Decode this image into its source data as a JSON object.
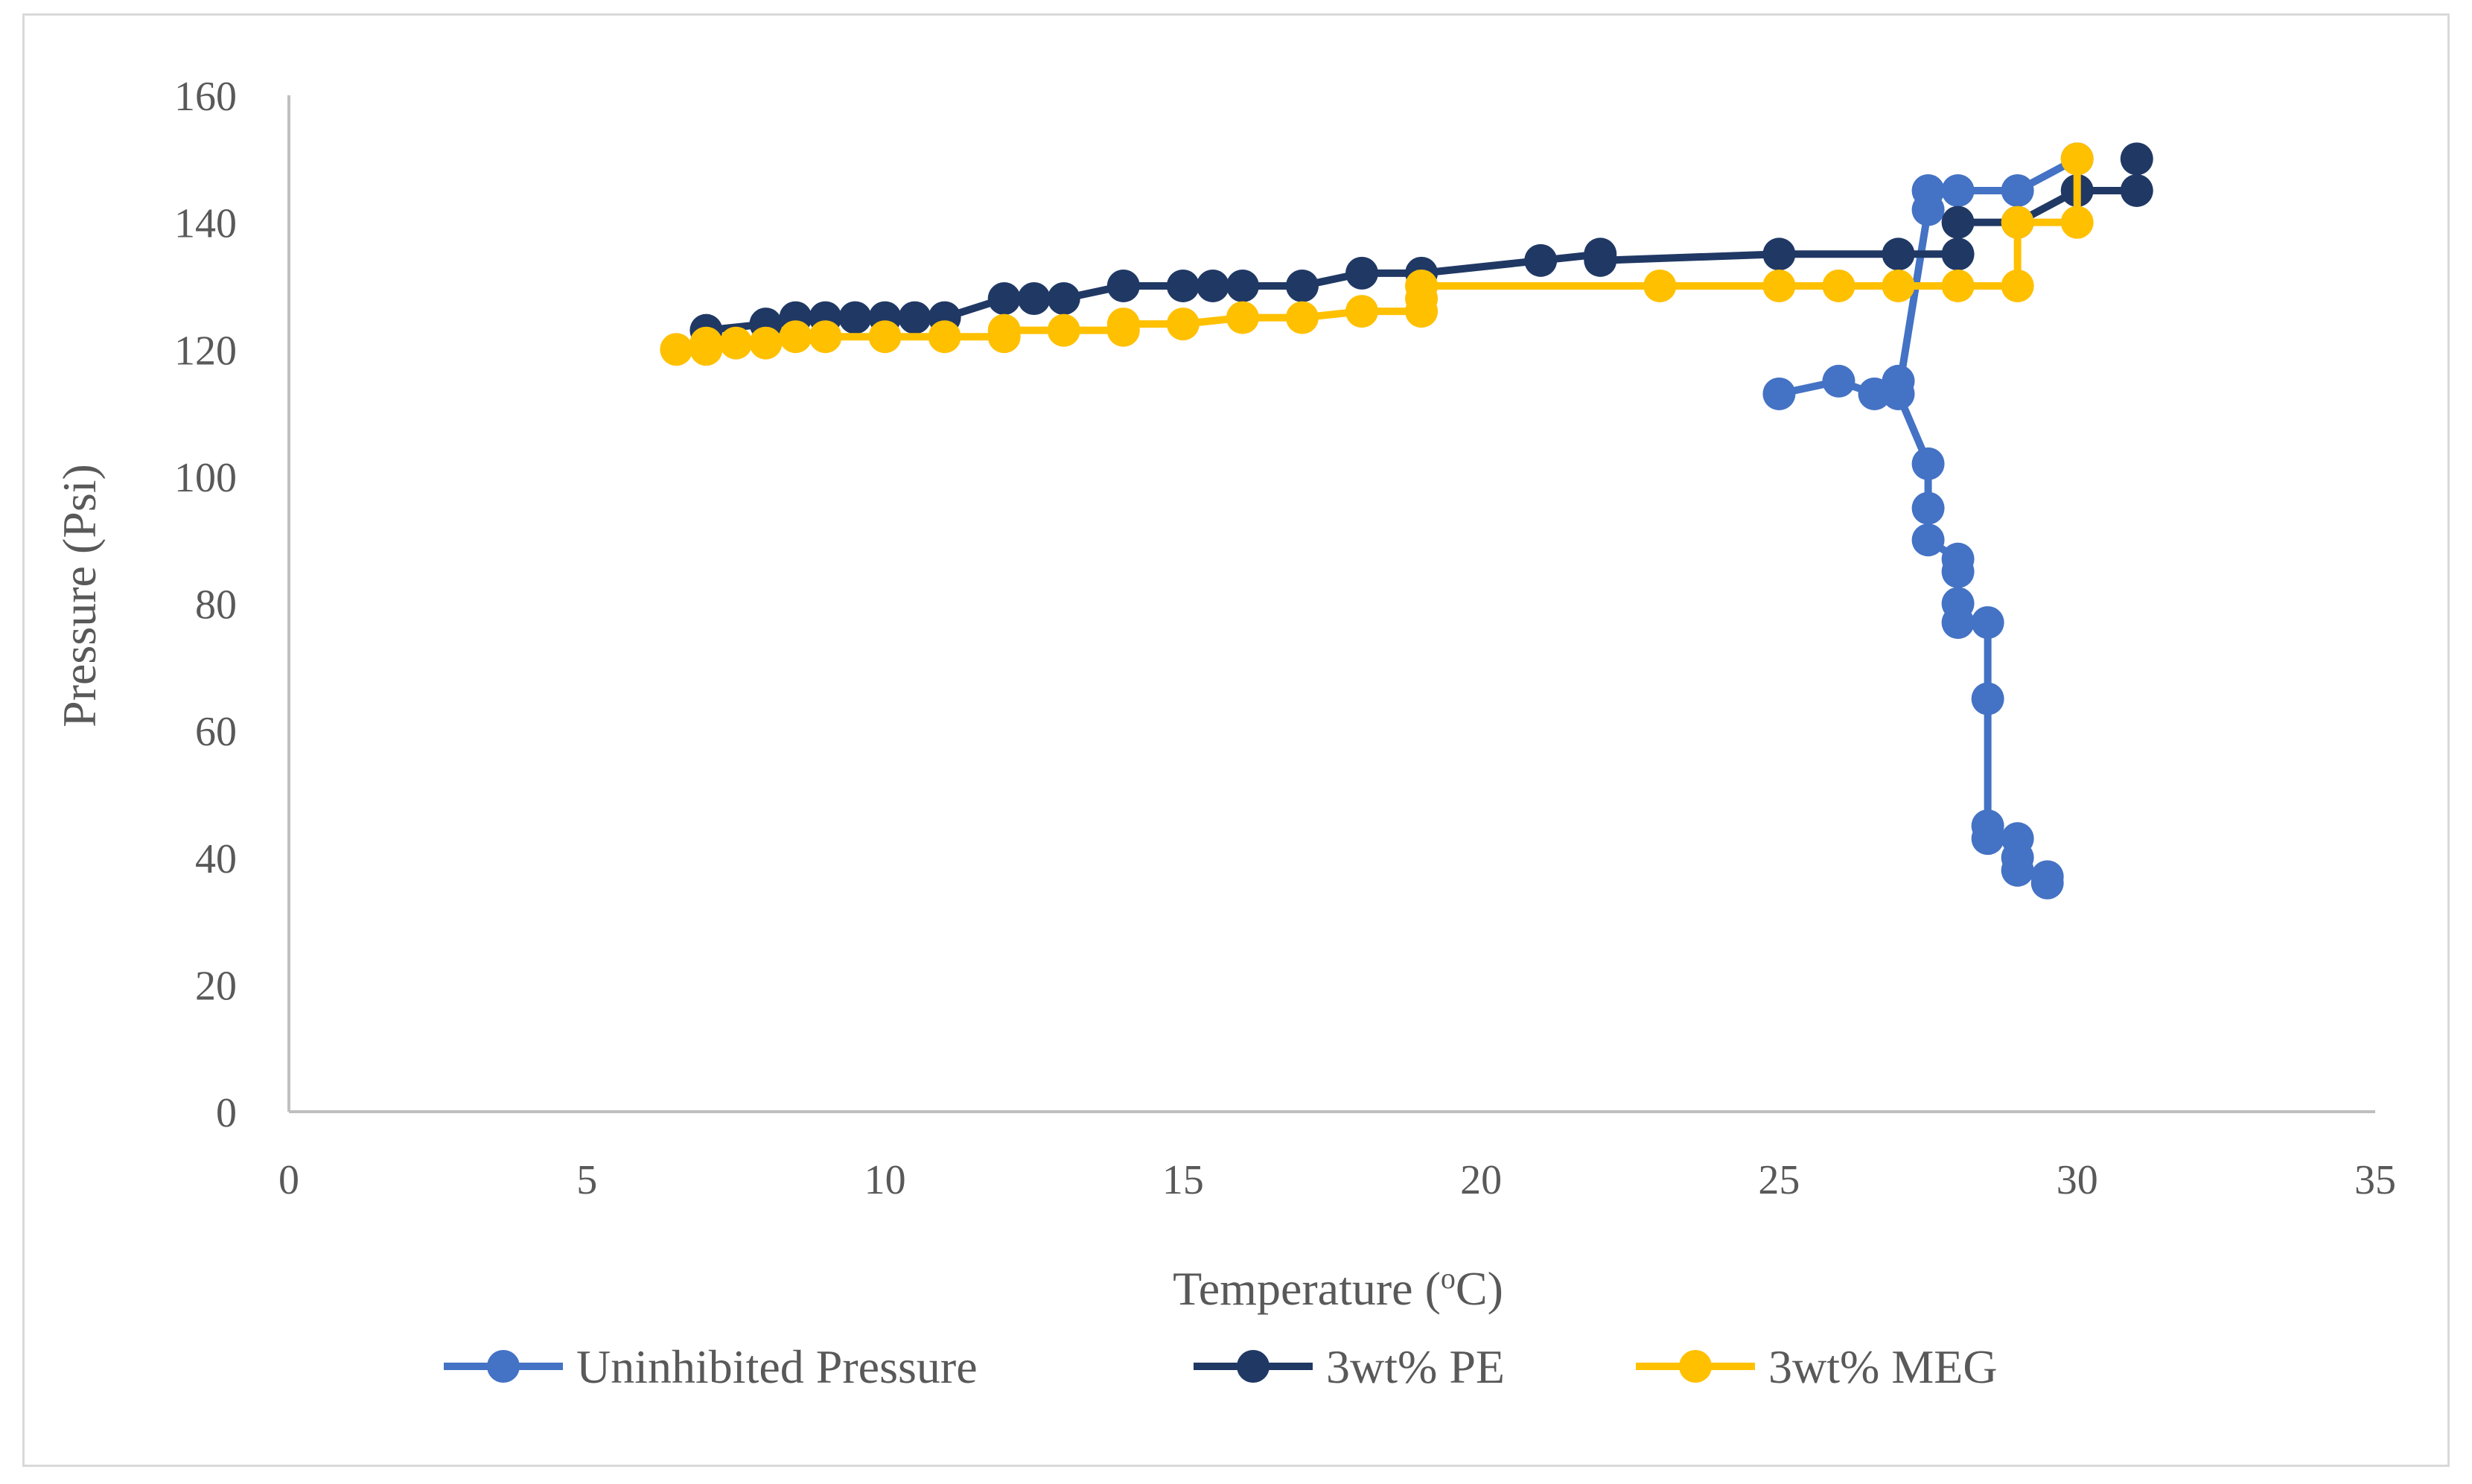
{
  "chart_data": {
    "type": "scatter",
    "title": "",
    "xlabel": "Temperature (",
    "xlabel_sup": "o",
    "xlabel_end": "C)",
    "ylabel": "Pressure (Psi)",
    "xlim": [
      0,
      35
    ],
    "ylim": [
      0,
      160
    ],
    "x_ticks": [
      "0",
      "5",
      "10",
      "15",
      "20",
      "25",
      "30",
      "35"
    ],
    "y_ticks": [
      "0",
      "20",
      "40",
      "60",
      "80",
      "100",
      "120",
      "140",
      "160"
    ],
    "grid": false,
    "legend_position": "bottom",
    "series": [
      {
        "name": "Uninhibited Pressure",
        "color": "#4472c4",
        "points": [
          [
            25,
            113
          ],
          [
            26,
            115
          ],
          [
            26.6,
            113
          ],
          [
            27,
            115
          ],
          [
            27,
            113
          ],
          [
            27.5,
            102
          ],
          [
            27.5,
            95
          ],
          [
            27.5,
            90
          ],
          [
            28,
            87
          ],
          [
            28,
            85
          ],
          [
            28,
            80
          ],
          [
            28,
            77
          ],
          [
            28.5,
            77
          ],
          [
            28.5,
            65
          ],
          [
            28.5,
            45
          ],
          [
            28.5,
            43
          ],
          [
            29,
            43
          ],
          [
            29,
            40
          ],
          [
            29,
            38
          ],
          [
            29.5,
            37
          ],
          [
            29.5,
            36
          ]
        ],
        "extra_points": [
          [
            27.5,
            142
          ],
          [
            27.5,
            145
          ],
          [
            28,
            145
          ],
          [
            29,
            145
          ],
          [
            30,
            150
          ]
        ]
      },
      {
        "name": "3wt% PE",
        "color": "#203864",
        "points": [
          [
            7,
            123
          ],
          [
            8,
            124
          ],
          [
            8.5,
            125
          ],
          [
            9,
            125
          ],
          [
            9.5,
            125
          ],
          [
            10,
            125
          ],
          [
            10.5,
            125
          ],
          [
            11,
            125
          ],
          [
            12,
            128
          ],
          [
            12.5,
            128
          ],
          [
            13,
            128
          ],
          [
            14,
            130
          ],
          [
            15,
            130
          ],
          [
            15.5,
            130
          ],
          [
            16,
            130
          ],
          [
            17,
            130
          ],
          [
            18,
            132
          ],
          [
            19,
            132
          ],
          [
            21,
            134
          ],
          [
            22,
            135
          ],
          [
            22,
            134
          ],
          [
            25,
            135
          ],
          [
            27,
            135
          ],
          [
            28,
            135
          ],
          [
            28,
            140
          ],
          [
            29,
            140
          ],
          [
            30,
            145
          ],
          [
            31,
            145
          ],
          [
            31,
            150
          ]
        ]
      },
      {
        "name": "3wt% MEG",
        "color": "#ffc000",
        "points": [
          [
            6.5,
            120
          ],
          [
            7,
            120
          ],
          [
            7,
            121
          ],
          [
            7.5,
            121
          ],
          [
            8,
            121
          ],
          [
            8.5,
            122
          ],
          [
            9,
            122
          ],
          [
            10,
            122
          ],
          [
            11,
            122
          ],
          [
            12,
            122
          ],
          [
            12,
            123
          ],
          [
            13,
            123
          ],
          [
            14,
            123
          ],
          [
            14,
            124
          ],
          [
            15,
            124
          ],
          [
            16,
            125
          ],
          [
            17,
            125
          ],
          [
            18,
            126
          ],
          [
            19,
            126
          ],
          [
            19,
            128
          ],
          [
            19,
            130
          ],
          [
            23,
            130
          ],
          [
            25,
            130
          ],
          [
            26,
            130
          ],
          [
            27,
            130
          ],
          [
            28,
            130
          ],
          [
            29,
            130
          ],
          [
            29,
            140
          ],
          [
            30,
            140
          ],
          [
            30,
            150
          ]
        ]
      }
    ]
  }
}
